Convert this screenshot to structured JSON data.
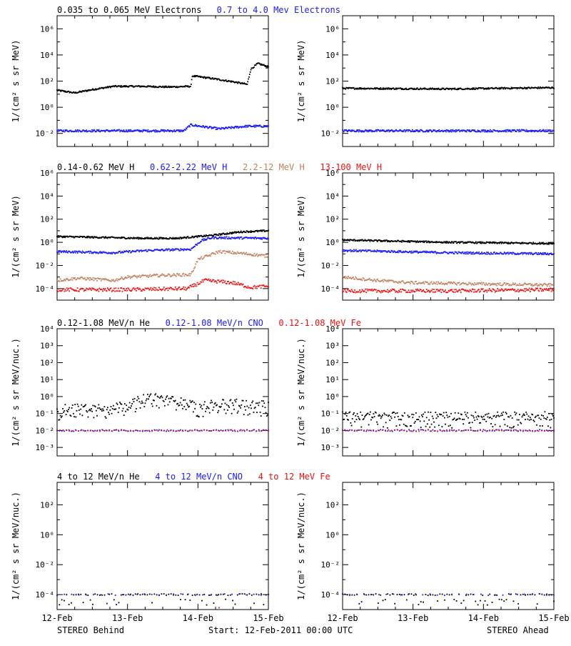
{
  "colors": {
    "black": "#000000",
    "blue": "#1a1aff",
    "tan": "#c08060",
    "red": "#ee1111"
  },
  "rows": [
    {
      "ylabel": "1/(cm² s sr MeV)",
      "yticks": [
        {
          "e": -2,
          "label": "10⁻²"
        },
        {
          "e": 0,
          "label": "10⁰"
        },
        {
          "e": 2,
          "label": "10²"
        },
        {
          "e": 4,
          "label": "10⁴"
        },
        {
          "e": 6,
          "label": "10⁶"
        }
      ],
      "ylim": [
        -3,
        7
      ],
      "titles": [
        {
          "text": "0.035 to 0.065 MeV Electrons",
          "color": "black"
        },
        {
          "text": "0.7 to 4.0 Mev Electrons",
          "color": "blue"
        }
      ]
    },
    {
      "ylabel": "1/(cm² s sr MeV)",
      "yticks": [
        {
          "e": -4,
          "label": "10⁻⁴"
        },
        {
          "e": -2,
          "label": "10⁻²"
        },
        {
          "e": 0,
          "label": "10⁰"
        },
        {
          "e": 2,
          "label": "10²"
        },
        {
          "e": 4,
          "label": "10⁴"
        },
        {
          "e": 6,
          "label": "10⁶"
        }
      ],
      "ylim": [
        -5,
        6
      ],
      "titles": [
        {
          "text": "0.14-0.62 MeV H",
          "color": "black"
        },
        {
          "text": "0.62-2.22 MeV H",
          "color": "blue"
        },
        {
          "text": "2.2-12 MeV H",
          "color": "tan"
        },
        {
          "text": "13-100 MeV H",
          "color": "red"
        }
      ]
    },
    {
      "ylabel": "1/(cm² s sr MeV/nuc.)",
      "yticks": [
        {
          "e": -3,
          "label": "10⁻³"
        },
        {
          "e": -2,
          "label": "10⁻²"
        },
        {
          "e": -1,
          "label": "10⁻¹"
        },
        {
          "e": 0,
          "label": "10⁰"
        },
        {
          "e": 1,
          "label": "10¹"
        },
        {
          "e": 2,
          "label": "10²"
        },
        {
          "e": 3,
          "label": "10³"
        },
        {
          "e": 4,
          "label": "10⁴"
        }
      ],
      "ylim": [
        -3.5,
        4
      ],
      "titles": [
        {
          "text": "0.12-1.08 MeV/n He",
          "color": "black"
        },
        {
          "text": "0.12-1.08 MeV/n CNO",
          "color": "blue"
        },
        {
          "text": "0.12-1.08 MeV Fe",
          "color": "red"
        }
      ]
    },
    {
      "ylabel": "1/(cm² s sr MeV/nuc.)",
      "yticks": [
        {
          "e": -4,
          "label": "10⁻⁴"
        },
        {
          "e": -2,
          "label": "10⁻²"
        },
        {
          "e": 0,
          "label": "10⁰"
        },
        {
          "e": 2,
          "label": "10²"
        }
      ],
      "ylim": [
        -5,
        3.5
      ],
      "titles": [
        {
          "text": "4 to 12 MeV/n He",
          "color": "black"
        },
        {
          "text": "4 to 12 MeV/n CNO",
          "color": "blue"
        },
        {
          "text": "4 to 12 MeV Fe",
          "color": "red"
        }
      ]
    }
  ],
  "xticks": [
    "12-Feb",
    "13-Feb",
    "14-Feb",
    "15-Feb"
  ],
  "footer": {
    "left": "STEREO Behind",
    "center": "Start: 12-Feb-2011 00:00 UTC",
    "right": "STEREO Ahead"
  },
  "chart_data": [
    {
      "type": "scatter",
      "panel": "Behind electrons",
      "x_unit": "day",
      "ylog": true,
      "series": [
        {
          "name": "0.035 to 0.065 MeV Electrons",
          "color": "black",
          "points": [
            [
              0,
              1.3
            ],
            [
              0.25,
              1.1
            ],
            [
              0.5,
              1.35
            ],
            [
              0.8,
              1.6
            ],
            [
              1.2,
              1.6
            ],
            [
              1.6,
              1.55
            ],
            [
              1.9,
              1.6
            ],
            [
              1.92,
              2.4
            ],
            [
              2.2,
              2.2
            ],
            [
              2.5,
              1.95
            ],
            [
              2.7,
              1.75
            ],
            [
              2.75,
              2.9
            ],
            [
              2.85,
              3.35
            ],
            [
              3,
              3.1
            ]
          ]
        },
        {
          "name": "0.7 to 4.0 Mev Electrons",
          "color": "blue",
          "points": [
            [
              0,
              -1.8
            ],
            [
              1,
              -1.8
            ],
            [
              1.8,
              -1.8
            ],
            [
              1.9,
              -1.35
            ],
            [
              2.3,
              -1.65
            ],
            [
              2.7,
              -1.45
            ],
            [
              3,
              -1.45
            ]
          ]
        }
      ]
    },
    {
      "type": "scatter",
      "panel": "Ahead electrons",
      "x_unit": "day",
      "ylog": true,
      "series": [
        {
          "name": "0.035 to 0.065 MeV Electrons",
          "color": "black",
          "points": [
            [
              0,
              1.45
            ],
            [
              1.5,
              1.4
            ],
            [
              3,
              1.5
            ]
          ]
        },
        {
          "name": "0.7 to 4.0 Mev Electrons",
          "color": "blue",
          "points": [
            [
              0,
              -1.8
            ],
            [
              1.5,
              -1.8
            ],
            [
              3,
              -1.8
            ]
          ]
        }
      ]
    },
    {
      "type": "scatter",
      "panel": "Behind protons",
      "x_unit": "day",
      "ylog": true,
      "series": [
        {
          "name": "0.14-0.62 MeV H",
          "color": "black",
          "points": [
            [
              0,
              0.5
            ],
            [
              0.8,
              0.4
            ],
            [
              1.2,
              0.35
            ],
            [
              1.7,
              0.35
            ],
            [
              2.2,
              0.6
            ],
            [
              2.6,
              0.9
            ],
            [
              3,
              1
            ]
          ]
        },
        {
          "name": "0.62-2.22 MeV H",
          "color": "blue",
          "points": [
            [
              0,
              -0.8
            ],
            [
              0.8,
              -0.9
            ],
            [
              1.3,
              -0.7
            ],
            [
              1.9,
              -0.6
            ],
            [
              2.05,
              0.15
            ],
            [
              2.2,
              0.4
            ],
            [
              3,
              0.35
            ]
          ]
        },
        {
          "name": "2.2-12 MeV H",
          "color": "tan",
          "points": [
            [
              0,
              -3.3
            ],
            [
              0.3,
              -3.1
            ],
            [
              0.8,
              -3.3
            ],
            [
              1,
              -3.0
            ],
            [
              1.5,
              -2.85
            ],
            [
              1.9,
              -2.8
            ],
            [
              2.0,
              -1.5
            ],
            [
              2.3,
              -0.8
            ],
            [
              2.7,
              -1.0
            ],
            [
              3,
              -1.2
            ]
          ]
        },
        {
          "name": "13-100 MeV H",
          "color": "red",
          "points": [
            [
              0,
              -4.1
            ],
            [
              1,
              -4.1
            ],
            [
              1.85,
              -4.0
            ],
            [
              2.1,
              -3.3
            ],
            [
              2.5,
              -3.5
            ],
            [
              2.75,
              -3.9
            ],
            [
              3,
              -3.8
            ]
          ]
        }
      ]
    },
    {
      "type": "scatter",
      "panel": "Ahead protons",
      "x_unit": "day",
      "ylog": true,
      "series": [
        {
          "name": "0.14-0.62 MeV H",
          "color": "black",
          "points": [
            [
              0,
              0.2
            ],
            [
              1.5,
              0
            ],
            [
              3,
              -0.1
            ]
          ]
        },
        {
          "name": "0.62-2.22 MeV H",
          "color": "blue",
          "points": [
            [
              0,
              -0.7
            ],
            [
              1.5,
              -0.9
            ],
            [
              3,
              -1.0
            ]
          ]
        },
        {
          "name": "2.2-12 MeV H",
          "color": "tan",
          "points": [
            [
              0,
              -3.0
            ],
            [
              0.5,
              -3.3
            ],
            [
              1,
              -3.5
            ],
            [
              3,
              -3.7
            ]
          ]
        },
        {
          "name": "13-100 MeV H",
          "color": "red",
          "points": [
            [
              0,
              -4.2
            ],
            [
              1.5,
              -4.2
            ],
            [
              3,
              -4.1
            ]
          ]
        }
      ]
    },
    {
      "type": "scatter",
      "panel": "Behind low-energy ions",
      "x_unit": "day",
      "ylog": true,
      "series": [
        {
          "name": "0.12-1.08 MeV/n He",
          "color": "black",
          "points": [
            [
              0,
              -0.7
            ],
            [
              0.5,
              -0.65
            ],
            [
              1.0,
              -0.5
            ],
            [
              1.3,
              0
            ],
            [
              1.6,
              -0.2
            ],
            [
              2.0,
              -0.5
            ],
            [
              2.5,
              -0.4
            ],
            [
              3,
              -0.5
            ]
          ]
        },
        {
          "name": "0.12-1.08 MeV/n CNO",
          "color": "blue",
          "points": [
            [
              0,
              -2
            ],
            [
              3,
              -2
            ]
          ]
        },
        {
          "name": "0.12-1.08 MeV Fe",
          "color": "red",
          "points": [
            [
              0,
              -2
            ],
            [
              3,
              -2
            ]
          ]
        }
      ]
    },
    {
      "type": "scatter",
      "panel": "Ahead low-energy ions",
      "x_unit": "day",
      "ylog": true,
      "series": [
        {
          "name": "0.12-1.08 MeV/n He",
          "color": "black",
          "points": [
            [
              0,
              -1.15
            ],
            [
              3,
              -1.15
            ]
          ]
        },
        {
          "name": "0.12-1.08 MeV/n CNO",
          "color": "blue",
          "points": [
            [
              0,
              -2
            ],
            [
              3,
              -2
            ]
          ]
        },
        {
          "name": "0.12-1.08 MeV Fe",
          "color": "red",
          "points": [
            [
              0,
              -2
            ],
            [
              3,
              -2
            ]
          ]
        }
      ]
    },
    {
      "type": "scatter",
      "panel": "Behind high-energy ions",
      "x_unit": "day",
      "ylog": true,
      "series": [
        {
          "name": "4 to 12 MeV/n He",
          "color": "black",
          "points": [
            [
              0,
              -4
            ],
            [
              3,
              -4
            ]
          ]
        },
        {
          "name": "4 to 12 MeV/n CNO",
          "color": "blue",
          "points": [
            [
              0,
              -4
            ],
            [
              3,
              -4
            ]
          ]
        },
        {
          "name": "4 to 12 MeV Fe",
          "color": "red",
          "points": [
            [
              2.3,
              -4.9
            ]
          ]
        }
      ]
    },
    {
      "type": "scatter",
      "panel": "Ahead high-energy ions",
      "x_unit": "day",
      "ylog": true,
      "series": [
        {
          "name": "4 to 12 MeV/n He",
          "color": "black",
          "points": [
            [
              0,
              -4
            ],
            [
              3,
              -4
            ]
          ]
        },
        {
          "name": "4 to 12 MeV/n CNO",
          "color": "blue",
          "points": [
            [
              0,
              -4
            ],
            [
              3,
              -4
            ]
          ]
        },
        {
          "name": "4 to 12 MeV Fe",
          "color": "red",
          "points": []
        }
      ]
    }
  ]
}
